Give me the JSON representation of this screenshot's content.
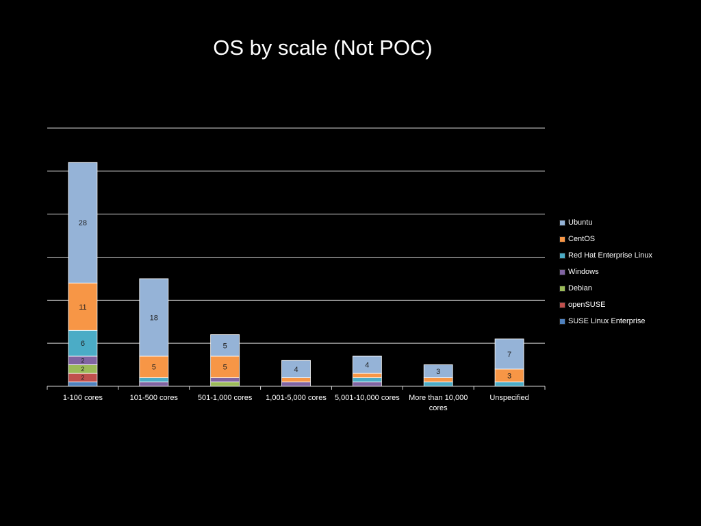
{
  "chart_data": {
    "type": "bar",
    "stacked": true,
    "title": "OS by scale (Not POC)",
    "xlabel": "",
    "ylabel": "",
    "ylim": [
      0,
      60
    ],
    "grid": true,
    "legend_position": "right",
    "categories": [
      "1-100 cores",
      "101-500 cores",
      "501-1,000 cores",
      "1,001-5,000 cores",
      "5,001-10,000 cores",
      "More than 10,000 cores",
      "Unspecified"
    ],
    "series": [
      {
        "name": "SUSE Linux Enterprise",
        "color": "#4F81BD",
        "values": [
          1,
          0,
          0,
          0,
          0,
          0,
          0
        ],
        "labels": [
          "",
          "",
          "",
          "",
          "",
          "",
          ""
        ]
      },
      {
        "name": "openSUSE",
        "color": "#C0504D",
        "values": [
          2,
          0,
          0,
          0,
          0,
          0,
          0
        ],
        "labels": [
          "2",
          "",
          "",
          "",
          "",
          "",
          ""
        ]
      },
      {
        "name": "Debian",
        "color": "#9BBB59",
        "values": [
          2,
          0,
          1,
          0,
          0,
          0,
          0
        ],
        "labels": [
          "2",
          "",
          "",
          "",
          "",
          "",
          ""
        ]
      },
      {
        "name": "Windows",
        "color": "#8064A2",
        "values": [
          2,
          1,
          1,
          1,
          1,
          0,
          0
        ],
        "labels": [
          "2",
          "",
          "",
          "",
          "",
          "",
          ""
        ]
      },
      {
        "name": "Red Hat Enterprise Linux",
        "color": "#4BACC6",
        "values": [
          6,
          1,
          0,
          0,
          1,
          1,
          1
        ],
        "labels": [
          "6",
          "",
          "",
          "",
          "",
          "",
          ""
        ]
      },
      {
        "name": "CentOS",
        "color": "#F79646",
        "values": [
          11,
          5,
          5,
          1,
          1,
          1,
          3
        ],
        "labels": [
          "11",
          "5",
          "5",
          "",
          "",
          "",
          "3"
        ]
      },
      {
        "name": "Ubuntu",
        "color": "#95B3D7",
        "values": [
          28,
          18,
          5,
          4,
          4,
          3,
          7
        ],
        "labels": [
          "28",
          "18",
          "5",
          "4",
          "4",
          "3",
          "7"
        ]
      }
    ],
    "legend_order": [
      "Ubuntu",
      "CentOS",
      "Red Hat Enterprise Linux",
      "Windows",
      "Debian",
      "openSUSE",
      "SUSE Linux Enterprise"
    ],
    "xtick_lines": [
      [
        "1-100 cores"
      ],
      [
        "101-500 cores"
      ],
      [
        "501-1,000 cores"
      ],
      [
        "1,001-5,000 cores"
      ],
      [
        "5,001-10,000 cores"
      ],
      [
        "More than 10,000",
        "cores"
      ],
      [
        "Unspecified"
      ]
    ]
  }
}
